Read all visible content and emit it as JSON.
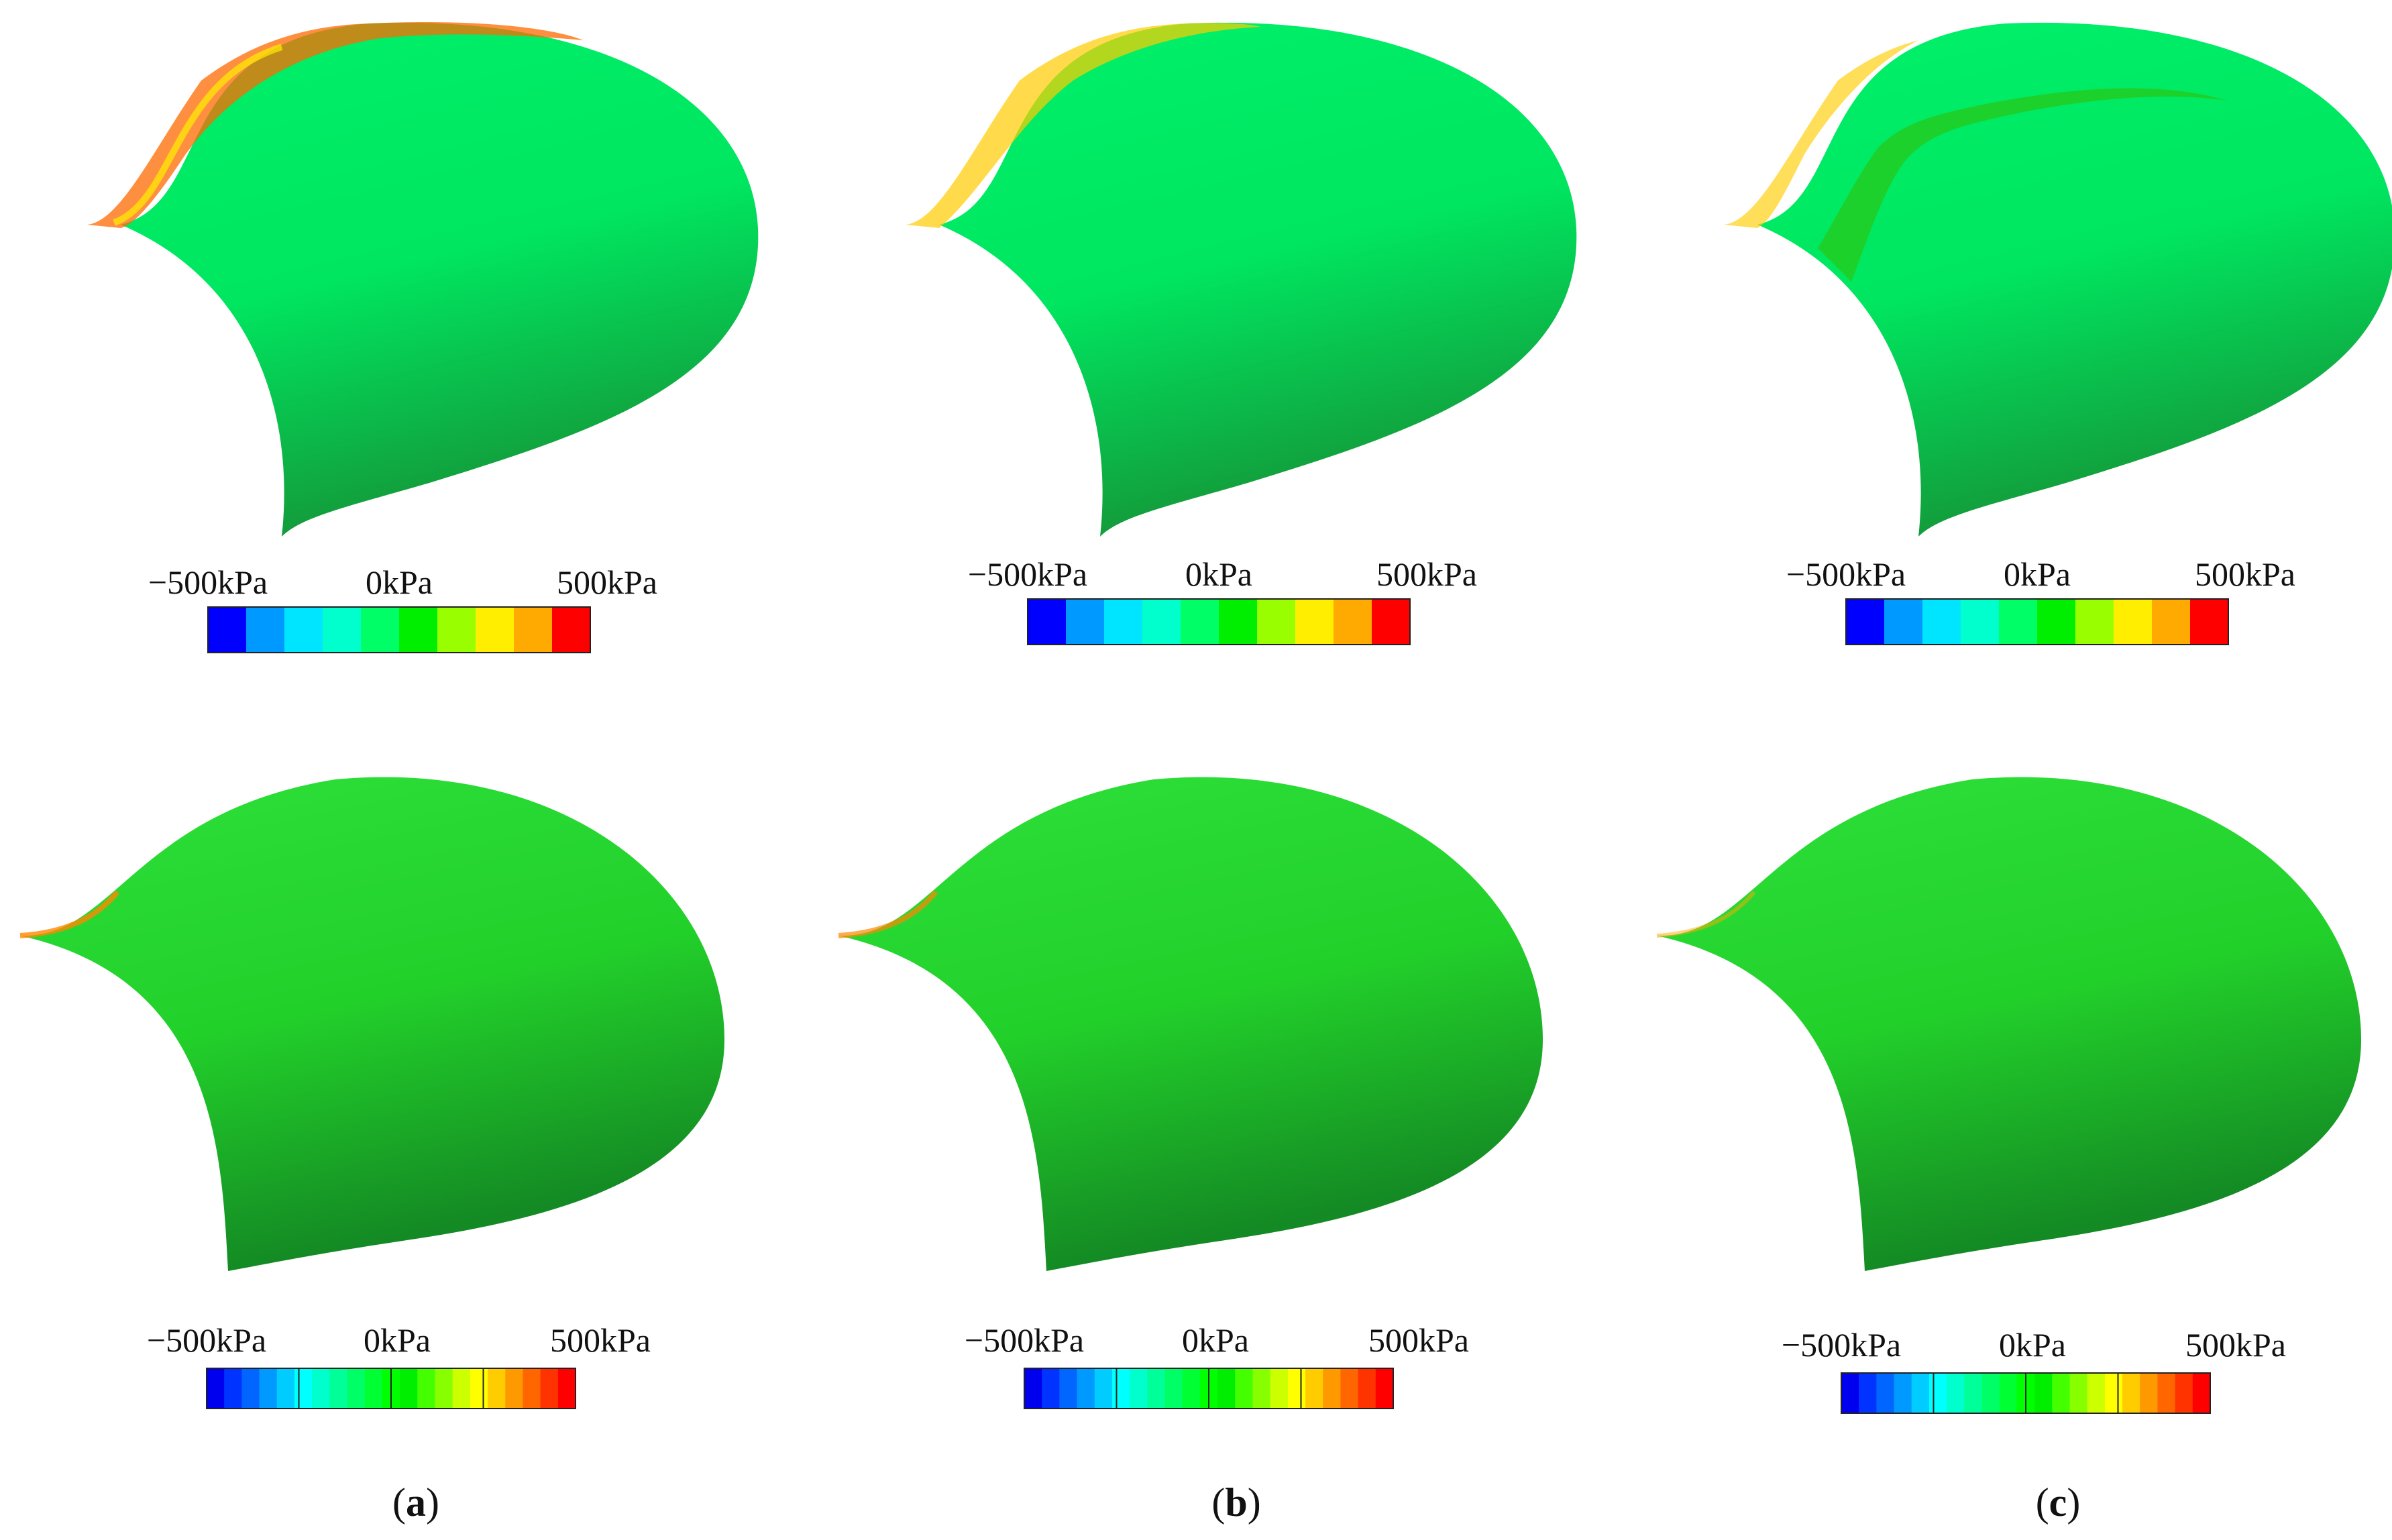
{
  "colorbar": {
    "min_label": "−500kPa",
    "mid_label": "0kPa",
    "max_label": "500kPa"
  },
  "coarse_colors": [
    "#0000ff",
    "#0099ff",
    "#00e5ff",
    "#00ffcc",
    "#00ff66",
    "#00ee00",
    "#99ff00",
    "#ffee00",
    "#ffaa00",
    "#ff0000"
  ],
  "fine_colors": [
    "#0000ee",
    "#0033ff",
    "#0066ff",
    "#0099ff",
    "#00ccff",
    "#00ffff",
    "#00ffcc",
    "#00ff99",
    "#00ff66",
    "#00ff33",
    "#00ff00",
    "#00ee00",
    "#44ff00",
    "#88ff00",
    "#ccff00",
    "#ffff00",
    "#ffcc00",
    "#ff9900",
    "#ff6600",
    "#ff3300",
    "#ff0000"
  ],
  "surface_colors": {
    "top_row": "#00ee60",
    "bottom_row": "#22dd22",
    "shadow": "#139a3a"
  },
  "panels": [
    {
      "label_open": "(",
      "label_letter": "a",
      "label_close": ")"
    },
    {
      "label_open": "(",
      "label_letter": "b",
      "label_close": ")"
    },
    {
      "label_open": "(",
      "label_letter": "c",
      "label_close": ")"
    }
  ]
}
